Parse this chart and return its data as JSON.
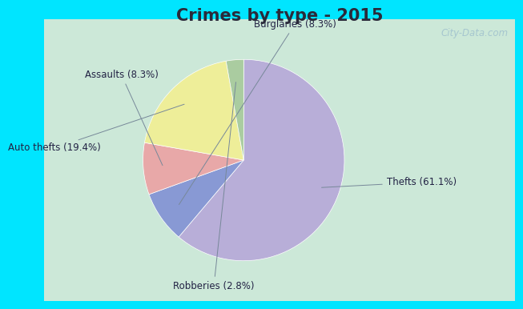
{
  "title": "Crimes by type - 2015",
  "title_fontsize": 15,
  "title_fontweight": "bold",
  "title_color": "#2a2a3a",
  "slices": [
    {
      "label": "Thefts (61.1%)",
      "value": 61.1,
      "color": "#b8aed8"
    },
    {
      "label": "Burglaries (8.3%)",
      "value": 8.3,
      "color": "#8899d4"
    },
    {
      "label": "Assaults (8.3%)",
      "value": 8.3,
      "color": "#e8a8a8"
    },
    {
      "label": "Auto thefts (19.4%)",
      "value": 19.4,
      "color": "#eeee99"
    },
    {
      "label": "Robberies (2.8%)",
      "value": 2.8,
      "color": "#aacca0"
    }
  ],
  "bg_outer": "#00e5ff",
  "bg_inner": "#cce8d8",
  "watermark": "City-Data.com",
  "startangle": 90,
  "label_fontsize": 8.5,
  "label_color": "#222244"
}
